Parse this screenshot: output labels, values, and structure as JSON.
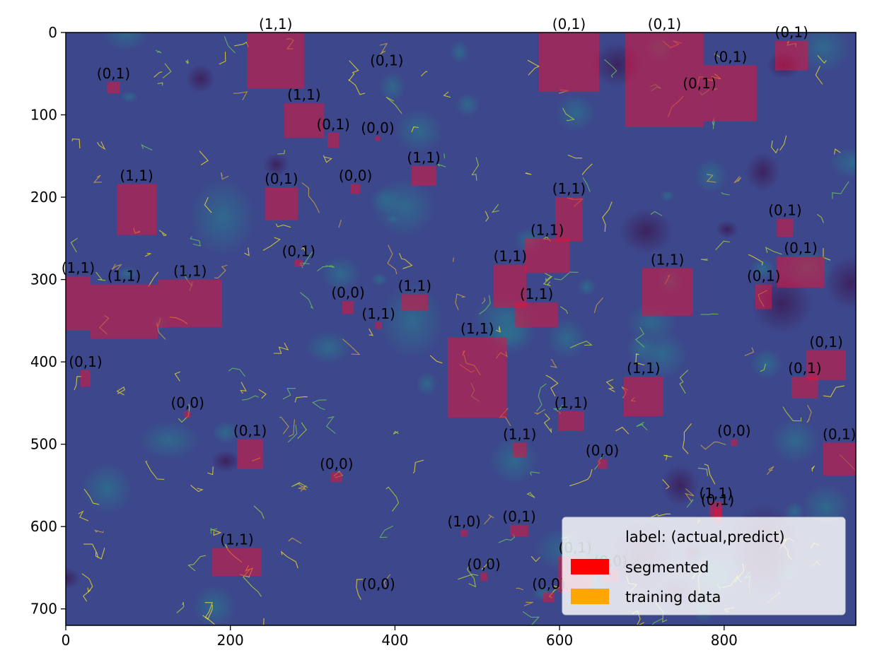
{
  "chart_data": {
    "type": "heatmap",
    "description_note": "",
    "title": "",
    "xlabel": "",
    "ylabel": "",
    "xlim": [
      0,
      960
    ],
    "ylim": [
      720,
      0
    ],
    "x_ticks": [
      0,
      200,
      400,
      600,
      800
    ],
    "y_ticks": [
      0,
      100,
      200,
      300,
      400,
      500,
      600,
      700
    ],
    "legend": {
      "placement": "lower-right",
      "title": "label: (actual,predict)",
      "entries": [
        {
          "name": "segmented",
          "color": "#ff0000"
        },
        {
          "name": "training data",
          "color": "#ffa500"
        }
      ]
    },
    "image_colormap": "viridis",
    "boxes": [
      {
        "label": "(1,1)",
        "x0": 220,
        "y0": 0,
        "x1": 290,
        "y1": 68
      },
      {
        "label": "(0,1)",
        "x0": 575,
        "y0": 0,
        "x1": 648,
        "y1": 72
      },
      {
        "label": "(0,1)",
        "x0": 680,
        "y0": 0,
        "x1": 775,
        "y1": 115
      },
      {
        "label": "(0,1)",
        "x0": 775,
        "y0": 40,
        "x1": 840,
        "y1": 108
      },
      {
        "label": "(0,1)",
        "x0": 862,
        "y0": 10,
        "x1": 902,
        "y1": 46
      },
      {
        "label": "(0,1)",
        "x0": 50,
        "y0": 60,
        "x1": 66,
        "y1": 74
      },
      {
        "label": "(1,1)",
        "x0": 265,
        "y0": 86,
        "x1": 314,
        "y1": 128
      },
      {
        "label": "(0,1)",
        "x0": 318,
        "y0": 122,
        "x1": 332,
        "y1": 140
      },
      {
        "label": "(0,0)",
        "x0": 376,
        "y0": 126,
        "x1": 382,
        "y1": 132
      },
      {
        "label": "(1,1)",
        "x0": 420,
        "y0": 162,
        "x1": 450,
        "y1": 186
      },
      {
        "label": "(1,1)",
        "x0": 62,
        "y0": 184,
        "x1": 110,
        "y1": 246
      },
      {
        "label": "(0,1)",
        "x0": 242,
        "y0": 188,
        "x1": 282,
        "y1": 228
      },
      {
        "label": "(0,0)",
        "x0": 346,
        "y0": 184,
        "x1": 358,
        "y1": 196
      },
      {
        "label": "(1,1)",
        "x0": 595,
        "y0": 200,
        "x1": 628,
        "y1": 254
      },
      {
        "label": "(0,1)",
        "x0": 864,
        "y0": 226,
        "x1": 884,
        "y1": 248
      },
      {
        "label": "(1,1)",
        "x0": 558,
        "y0": 250,
        "x1": 612,
        "y1": 292
      },
      {
        "label": "(1,1)",
        "x0": 520,
        "y0": 282,
        "x1": 560,
        "y1": 334
      },
      {
        "label": "(1,1)",
        "x0": 700,
        "y0": 286,
        "x1": 762,
        "y1": 344
      },
      {
        "label": "(0,1)",
        "x0": 864,
        "y0": 272,
        "x1": 922,
        "y1": 310
      },
      {
        "label": "(0,1)",
        "x0": 838,
        "y0": 306,
        "x1": 858,
        "y1": 336
      },
      {
        "label": "(0,1)",
        "x0": 278,
        "y0": 276,
        "x1": 288,
        "y1": 284
      },
      {
        "label": "(1,1)",
        "x0": 0,
        "y0": 296,
        "x1": 30,
        "y1": 362
      },
      {
        "label": "(1,1)",
        "x0": 30,
        "y0": 306,
        "x1": 112,
        "y1": 372
      },
      {
        "label": "(1,1)",
        "x0": 112,
        "y0": 300,
        "x1": 190,
        "y1": 358
      },
      {
        "label": "(0,0)",
        "x0": 336,
        "y0": 326,
        "x1": 350,
        "y1": 342
      },
      {
        "label": "(1,1)",
        "x0": 408,
        "y0": 318,
        "x1": 440,
        "y1": 338
      },
      {
        "label": "(1,1)",
        "x0": 546,
        "y0": 328,
        "x1": 598,
        "y1": 358
      },
      {
        "label": "(1,1)",
        "x0": 376,
        "y0": 352,
        "x1": 384,
        "y1": 360
      },
      {
        "label": "(1,1)",
        "x0": 464,
        "y0": 370,
        "x1": 536,
        "y1": 468
      },
      {
        "label": "(0,1)",
        "x0": 18,
        "y0": 410,
        "x1": 30,
        "y1": 430
      },
      {
        "label": "(0,1)",
        "x0": 900,
        "y0": 386,
        "x1": 948,
        "y1": 422
      },
      {
        "label": "(0,1)",
        "x0": 882,
        "y0": 418,
        "x1": 914,
        "y1": 444
      },
      {
        "label": "(1,1)",
        "x0": 678,
        "y0": 418,
        "x1": 726,
        "y1": 466
      },
      {
        "label": "(0,0)",
        "x0": 144,
        "y0": 460,
        "x1": 152,
        "y1": 468
      },
      {
        "label": "(1,1)",
        "x0": 598,
        "y0": 460,
        "x1": 630,
        "y1": 484
      },
      {
        "label": "(0,1)",
        "x0": 208,
        "y0": 494,
        "x1": 240,
        "y1": 530
      },
      {
        "label": "(1,1)",
        "x0": 543,
        "y0": 498,
        "x1": 560,
        "y1": 516
      },
      {
        "label": "(0,0)",
        "x0": 646,
        "y0": 518,
        "x1": 658,
        "y1": 530
      },
      {
        "label": "(0,0)",
        "x0": 808,
        "y0": 494,
        "x1": 816,
        "y1": 502
      },
      {
        "label": "(0,1)",
        "x0": 920,
        "y0": 498,
        "x1": 960,
        "y1": 538
      },
      {
        "label": "(0,0)",
        "x0": 322,
        "y0": 534,
        "x1": 336,
        "y1": 546
      },
      {
        "label": "(1,1)",
        "x0": 782,
        "y0": 570,
        "x1": 798,
        "y1": 590
      },
      {
        "label": "(0,1)",
        "x0": 788,
        "y0": 578,
        "x1": 796,
        "y1": 596
      },
      {
        "label": "(1,0)",
        "x0": 480,
        "y0": 604,
        "x1": 488,
        "y1": 612
      },
      {
        "label": "(0,1)",
        "x0": 540,
        "y0": 598,
        "x1": 562,
        "y1": 612
      },
      {
        "label": "(1,1)",
        "x0": 178,
        "y0": 626,
        "x1": 238,
        "y1": 660
      },
      {
        "label": "(0,1)",
        "x0": 598,
        "y0": 636,
        "x1": 640,
        "y1": 680
      },
      {
        "label": "(0,0)",
        "x0": 652,
        "y0": 652,
        "x1": 672,
        "y1": 668
      },
      {
        "label": "(0,0)",
        "x0": 504,
        "y0": 656,
        "x1": 512,
        "y1": 666
      },
      {
        "label": "(0,0)",
        "x0": 580,
        "y0": 680,
        "x1": 594,
        "y1": 692
      },
      {
        "label": "(0,0)",
        "x0": 380,
        "y0": 680,
        "x1": 380,
        "y1": 680
      }
    ],
    "floating_labels": [
      {
        "label": "(0,1)",
        "x": 390,
        "y": 40
      },
      {
        "label": "(0,1)",
        "x": 770,
        "y": 68
      }
    ]
  }
}
